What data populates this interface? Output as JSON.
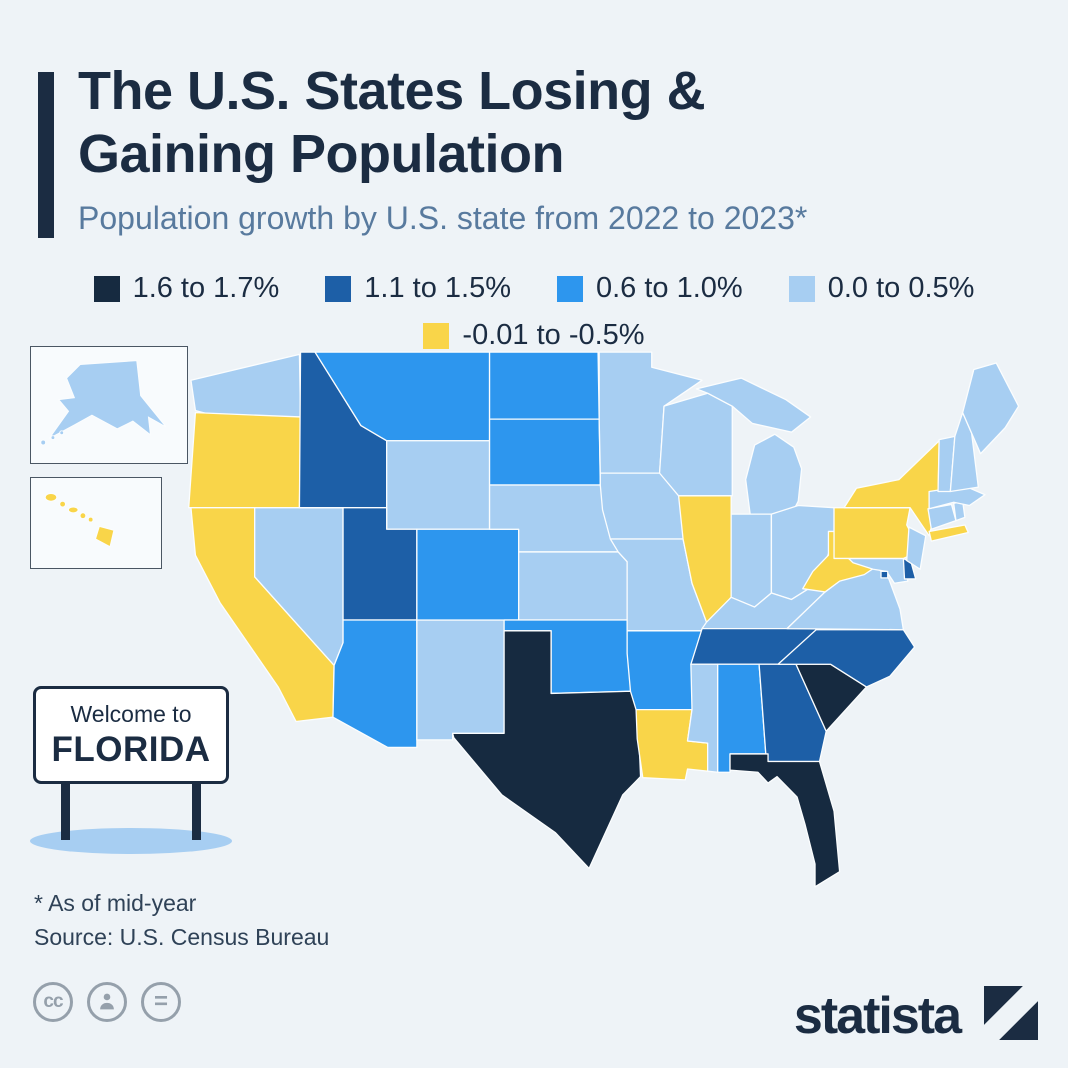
{
  "header": {
    "title_line1": "The U.S. States Losing &",
    "title_line2": "Gaining Population",
    "subtitle": "Population growth by U.S. state from 2022 to 2023*"
  },
  "legend": {
    "items": [
      {
        "label": "1.6 to 1.7%",
        "color": "#162a40"
      },
      {
        "label": "1.1 to 1.5%",
        "color": "#1d5fa7"
      },
      {
        "label": "0.6 to 1.0%",
        "color": "#2d96ee"
      },
      {
        "label": "0.0 to 0.5%",
        "color": "#a7cef2"
      },
      {
        "label": "-0.01 to -0.5%",
        "color": "#f9d549"
      }
    ]
  },
  "map": {
    "border_color": "#fbfdfe",
    "state_categories": {
      "WA": 3,
      "OR": 4,
      "CA": 4,
      "NV": 3,
      "ID": 1,
      "MT": 2,
      "WY": 3,
      "UT": 1,
      "AZ": 2,
      "NM": 3,
      "CO": 2,
      "ND": 2,
      "SD": 2,
      "NE": 3,
      "KS": 3,
      "OK": 2,
      "TX": 0,
      "MN": 3,
      "IA": 3,
      "MO": 3,
      "AR": 2,
      "LA": 4,
      "WI": 3,
      "IL": 4,
      "MI": 3,
      "IN": 3,
      "OH": 3,
      "KY": 3,
      "TN": 1,
      "MS": 3,
      "AL": 2,
      "GA": 1,
      "FL": 0,
      "SC": 0,
      "NC": 1,
      "VA": 3,
      "WV": 4,
      "MD": 3,
      "DE": 1,
      "DC": 1,
      "PA": 4,
      "NY": 4,
      "NJ": 3,
      "CT": 3,
      "RI": 3,
      "MA": 3,
      "VT": 3,
      "NH": 3,
      "ME": 3,
      "AK": 3,
      "HI": 4
    }
  },
  "sign": {
    "line1": "Welcome to",
    "line2": "FLORIDA"
  },
  "footnotes": {
    "note": "* As of mid-year",
    "source": "Source: U.S. Census Bureau"
  },
  "branding": {
    "logo_text": "statista",
    "license_icons": [
      "creative-commons",
      "attribution",
      "no-derivatives"
    ]
  },
  "chart_data": {
    "type": "heatmap",
    "subtype": "choropleth-us-states",
    "title": "The U.S. States Losing & Gaining Population",
    "subtitle": "Population growth by U.S. state from 2022 to 2023*",
    "unit": "percent population growth, 2022 to 2023",
    "legend_position": "top",
    "classes": [
      {
        "range": "1.6 to 1.7%",
        "color": "#162a40",
        "states": [
          "Texas",
          "Florida",
          "South Carolina"
        ]
      },
      {
        "range": "1.1 to 1.5%",
        "color": "#1d5fa7",
        "states": [
          "Idaho",
          "Utah",
          "Tennessee",
          "North Carolina",
          "Georgia",
          "Delaware",
          "District of Columbia"
        ]
      },
      {
        "range": "0.6 to 1.0%",
        "color": "#2d96ee",
        "states": [
          "Montana",
          "North Dakota",
          "South Dakota",
          "Colorado",
          "Arizona",
          "Oklahoma",
          "Arkansas",
          "Alabama"
        ]
      },
      {
        "range": "0.0 to 0.5%",
        "color": "#a7cef2",
        "states": [
          "Washington",
          "Nevada",
          "Wyoming",
          "New Mexico",
          "Nebraska",
          "Kansas",
          "Minnesota",
          "Iowa",
          "Missouri",
          "Wisconsin",
          "Michigan",
          "Indiana",
          "Ohio",
          "Kentucky",
          "Virginia",
          "Maryland",
          "New Jersey",
          "Connecticut",
          "Rhode Island",
          "Massachusetts",
          "Vermont",
          "New Hampshire",
          "Maine",
          "Mississippi",
          "Alaska"
        ]
      },
      {
        "range": "-0.01 to -0.5%",
        "color": "#f9d549",
        "states": [
          "Oregon",
          "California",
          "Illinois",
          "Louisiana",
          "West Virginia",
          "Pennsylvania",
          "New York",
          "Hawaii"
        ]
      }
    ],
    "source": "U.S. Census Bureau",
    "note": "As of mid-year"
  }
}
